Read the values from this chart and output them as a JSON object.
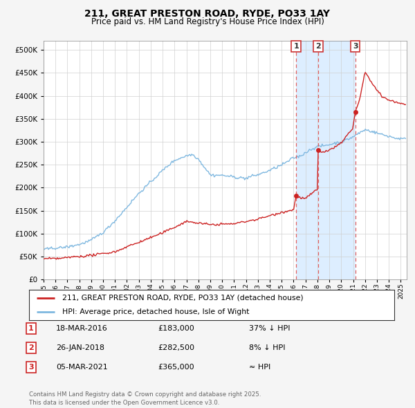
{
  "title": "211, GREAT PRESTON ROAD, RYDE, PO33 1AY",
  "subtitle": "Price paid vs. HM Land Registry's House Price Index (HPI)",
  "ytick_values": [
    0,
    50000,
    100000,
    150000,
    200000,
    250000,
    300000,
    350000,
    400000,
    450000,
    500000
  ],
  "ylim": [
    0,
    520000
  ],
  "xlim_start": 1995.0,
  "xlim_end": 2025.5,
  "hpi_color": "#7fb8e0",
  "price_color": "#cc2222",
  "vline_color": "#e06060",
  "highlight_color": "#ddeeff",
  "background_color": "#f5f5f5",
  "plot_bg_color": "#ffffff",
  "sales": [
    {
      "date_num": 2016.21,
      "price": 183000,
      "label": "1"
    },
    {
      "date_num": 2018.07,
      "price": 282500,
      "label": "2"
    },
    {
      "date_num": 2021.18,
      "price": 365000,
      "label": "3"
    }
  ],
  "table_rows": [
    {
      "num": "1",
      "date": "18-MAR-2016",
      "price": "£183,000",
      "rel": "37% ↓ HPI"
    },
    {
      "num": "2",
      "date": "26-JAN-2018",
      "price": "£282,500",
      "rel": "8% ↓ HPI"
    },
    {
      "num": "3",
      "date": "05-MAR-2021",
      "price": "£365,000",
      "rel": "≈ HPI"
    }
  ],
  "legend_entries": [
    "211, GREAT PRESTON ROAD, RYDE, PO33 1AY (detached house)",
    "HPI: Average price, detached house, Isle of Wight"
  ],
  "footnote": "Contains HM Land Registry data © Crown copyright and database right 2025.\nThis data is licensed under the Open Government Licence v3.0."
}
